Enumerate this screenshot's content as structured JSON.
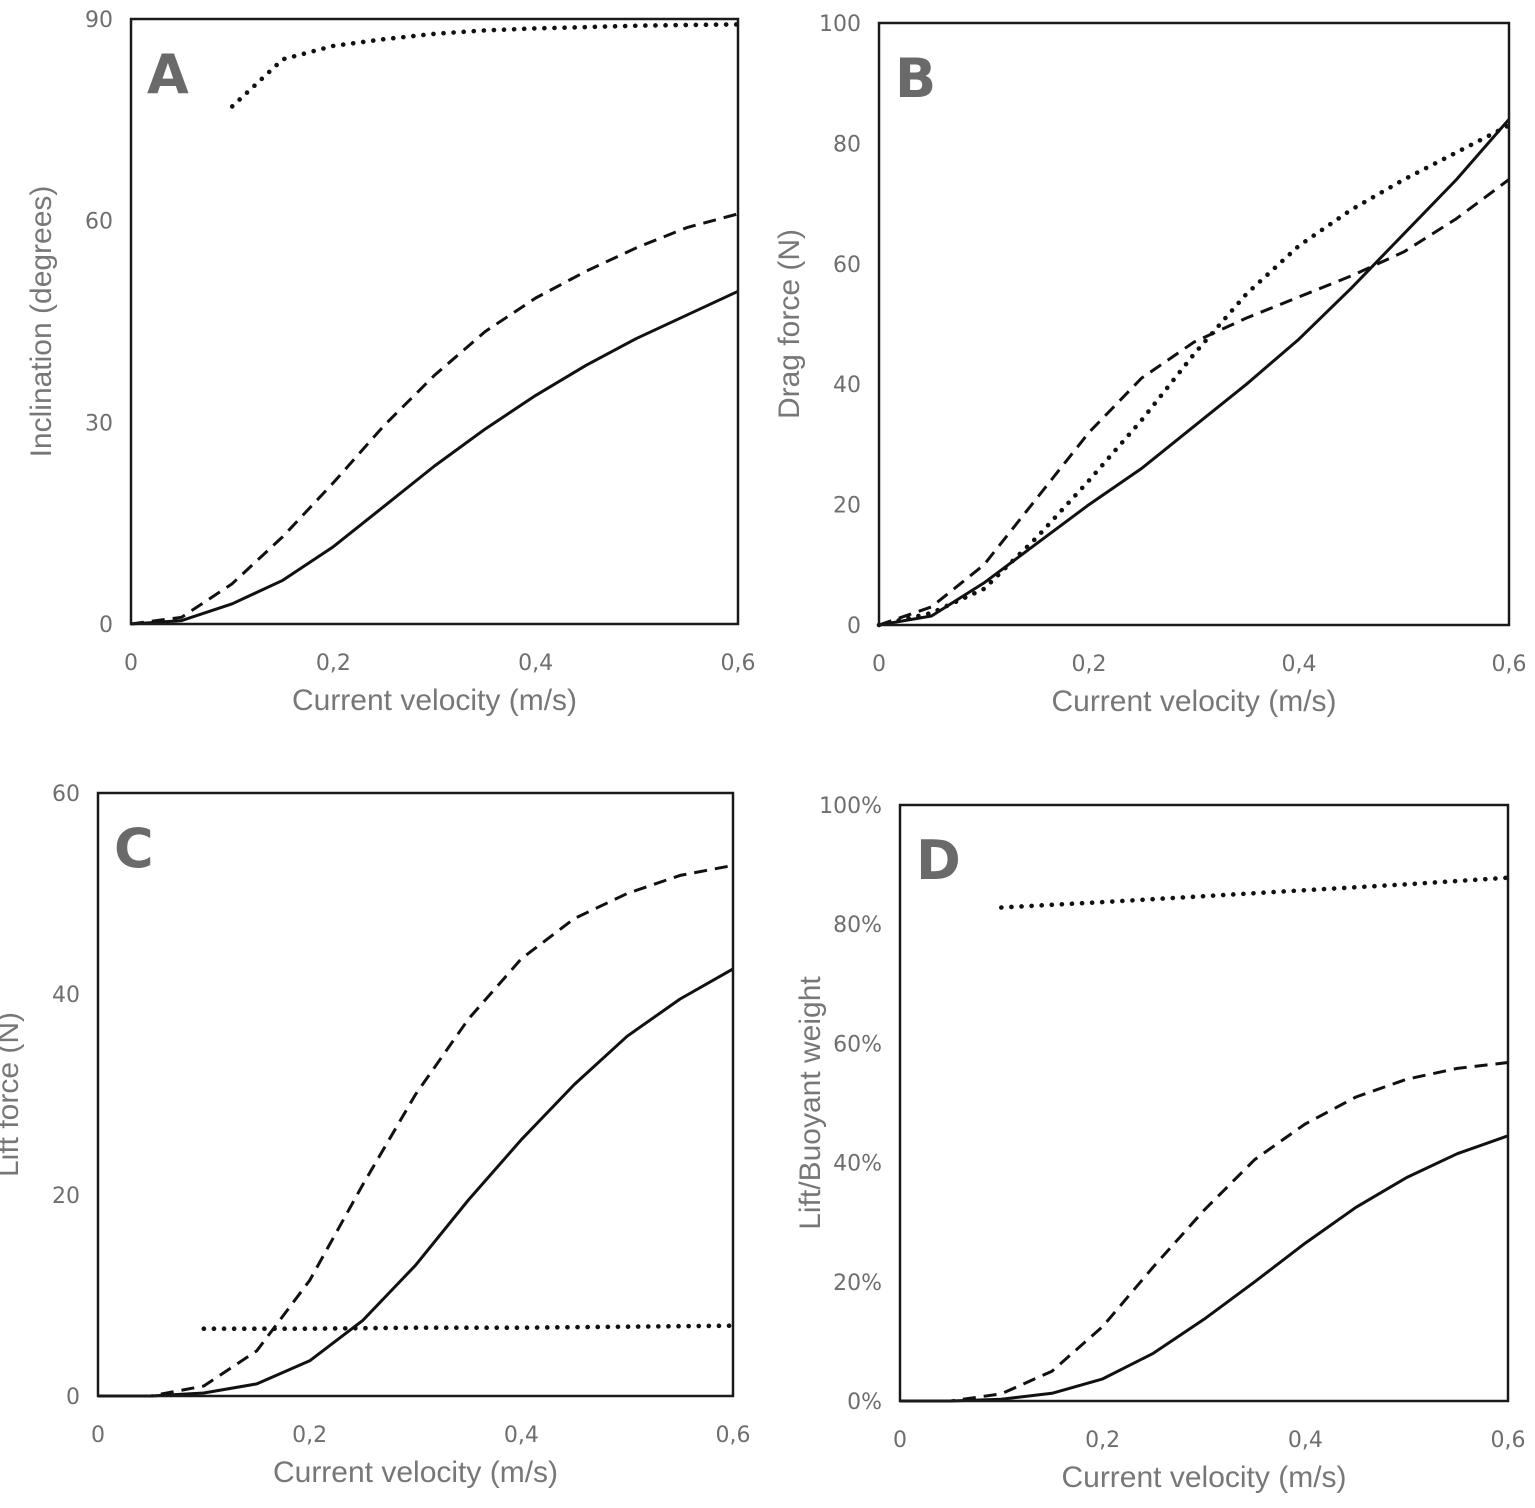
{
  "chart_data": [
    {
      "type": "line",
      "panel": "A",
      "xlabel": "Current velocity (m/s)",
      "ylabel": "Inclination (degrees)",
      "xlim": [
        0,
        0.6
      ],
      "ylim": [
        0,
        90
      ],
      "xticks": [
        "0",
        "0,2",
        "0,4",
        "0,6"
      ],
      "yticks": [
        "0",
        "30",
        "60",
        "90"
      ],
      "series": [
        {
          "name": "solid",
          "style": "solid",
          "x": [
            0,
            0.05,
            0.1,
            0.15,
            0.2,
            0.25,
            0.3,
            0.35,
            0.4,
            0.45,
            0.5,
            0.55,
            0.6
          ],
          "y": [
            0,
            0.5,
            3,
            6.5,
            11.5,
            17.5,
            23.5,
            29,
            34,
            38.5,
            42.5,
            46,
            49.5
          ]
        },
        {
          "name": "dashed",
          "style": "dashed",
          "x": [
            0,
            0.05,
            0.1,
            0.15,
            0.2,
            0.25,
            0.3,
            0.35,
            0.4,
            0.45,
            0.5,
            0.55,
            0.6
          ],
          "y": [
            0,
            1,
            6,
            13,
            21,
            29.5,
            37,
            43.5,
            48.5,
            52.5,
            56,
            59,
            61
          ]
        },
        {
          "name": "dotted",
          "style": "dotted",
          "x": [
            0.1,
            0.15,
            0.2,
            0.25,
            0.3,
            0.35,
            0.4,
            0.45,
            0.5,
            0.55,
            0.6
          ],
          "y": [
            77,
            84,
            86,
            87,
            87.8,
            88.3,
            88.6,
            88.8,
            89,
            89.1,
            89.2
          ]
        }
      ]
    },
    {
      "type": "line",
      "panel": "B",
      "xlabel": "Current velocity (m/s)",
      "ylabel": "Drag force (N)",
      "xlim": [
        0,
        0.6
      ],
      "ylim": [
        0,
        100
      ],
      "xticks": [
        "0",
        "0,2",
        "0,4",
        "0,6"
      ],
      "yticks": [
        "0",
        "20",
        "40",
        "60",
        "80",
        "100"
      ],
      "series": [
        {
          "name": "solid",
          "style": "solid",
          "x": [
            0,
            0.05,
            0.1,
            0.15,
            0.2,
            0.25,
            0.3,
            0.35,
            0.4,
            0.45,
            0.5,
            0.55,
            0.6
          ],
          "y": [
            0,
            1.5,
            7,
            13.5,
            20,
            26,
            33,
            40,
            47.5,
            56,
            65,
            74,
            84
          ]
        },
        {
          "name": "dashed",
          "style": "dashed",
          "x": [
            0,
            0.05,
            0.1,
            0.15,
            0.2,
            0.25,
            0.3,
            0.35,
            0.4,
            0.45,
            0.5,
            0.55,
            0.6
          ],
          "y": [
            0,
            3,
            10,
            21,
            32,
            41,
            47,
            51,
            54.5,
            58,
            62,
            67.5,
            74
          ]
        },
        {
          "name": "dotted",
          "style": "dotted",
          "x": [
            0,
            0.05,
            0.1,
            0.15,
            0.2,
            0.25,
            0.3,
            0.35,
            0.4,
            0.45,
            0.5,
            0.55,
            0.6
          ],
          "y": [
            0,
            2,
            6,
            14.5,
            24,
            34,
            45,
            55,
            63,
            69,
            74,
            78.5,
            83
          ]
        }
      ]
    },
    {
      "type": "line",
      "panel": "C",
      "xlabel": "Current velocity (m/s)",
      "ylabel": "Lift  force (N)",
      "xlim": [
        0,
        0.6
      ],
      "ylim": [
        0,
        60
      ],
      "xticks": [
        "0",
        "0,2",
        "0,4",
        "0,6"
      ],
      "yticks": [
        "0",
        "20",
        "40",
        "60"
      ],
      "series": [
        {
          "name": "solid",
          "style": "solid",
          "x": [
            0,
            0.05,
            0.1,
            0.15,
            0.2,
            0.25,
            0.3,
            0.35,
            0.4,
            0.45,
            0.5,
            0.55,
            0.6
          ],
          "y": [
            0,
            0,
            0.3,
            1.2,
            3.5,
            7.5,
            13,
            19.5,
            25.5,
            31,
            35.8,
            39.5,
            42.5
          ]
        },
        {
          "name": "dashed",
          "style": "dashed",
          "x": [
            0,
            0.05,
            0.1,
            0.15,
            0.2,
            0.25,
            0.3,
            0.35,
            0.4,
            0.45,
            0.5,
            0.55,
            0.6
          ],
          "y": [
            0,
            0,
            1,
            4.5,
            11.5,
            21,
            30,
            37.5,
            43.5,
            47.5,
            50,
            51.8,
            52.8
          ]
        },
        {
          "name": "dotted",
          "style": "dotted",
          "x": [
            0.1,
            0.2,
            0.3,
            0.4,
            0.5,
            0.6
          ],
          "y": [
            6.7,
            6.7,
            6.8,
            6.8,
            6.9,
            7
          ]
        }
      ]
    },
    {
      "type": "line",
      "panel": "D",
      "xlabel": "Current velocity (m/s)",
      "ylabel": "Lift/Buoyant weight",
      "xlim": [
        0,
        0.6
      ],
      "ylim": [
        0,
        100
      ],
      "xticks": [
        "0",
        "0,2",
        "0,4",
        "0,6"
      ],
      "yticks": [
        "0%",
        "20%",
        "40%",
        "60%",
        "80%",
        "100%"
      ],
      "series": [
        {
          "name": "solid",
          "style": "solid",
          "x": [
            0,
            0.05,
            0.1,
            0.15,
            0.2,
            0.25,
            0.3,
            0.35,
            0.4,
            0.45,
            0.5,
            0.55,
            0.6
          ],
          "y": [
            0,
            0,
            0.3,
            1.3,
            3.7,
            8,
            13.7,
            20,
            26.5,
            32.5,
            37.5,
            41.5,
            44.5
          ]
        },
        {
          "name": "dashed",
          "style": "dashed",
          "x": [
            0,
            0.05,
            0.1,
            0.15,
            0.2,
            0.25,
            0.3,
            0.35,
            0.4,
            0.45,
            0.5,
            0.55,
            0.6
          ],
          "y": [
            0,
            0,
            1.2,
            5,
            12.5,
            22.5,
            32,
            40.5,
            46.5,
            51,
            54,
            55.8,
            56.8
          ]
        },
        {
          "name": "dotted",
          "style": "dotted",
          "x": [
            0.1,
            0.2,
            0.3,
            0.4,
            0.5,
            0.6
          ],
          "y": [
            82.8,
            83.7,
            84.7,
            85.7,
            86.7,
            87.8
          ]
        }
      ]
    }
  ]
}
